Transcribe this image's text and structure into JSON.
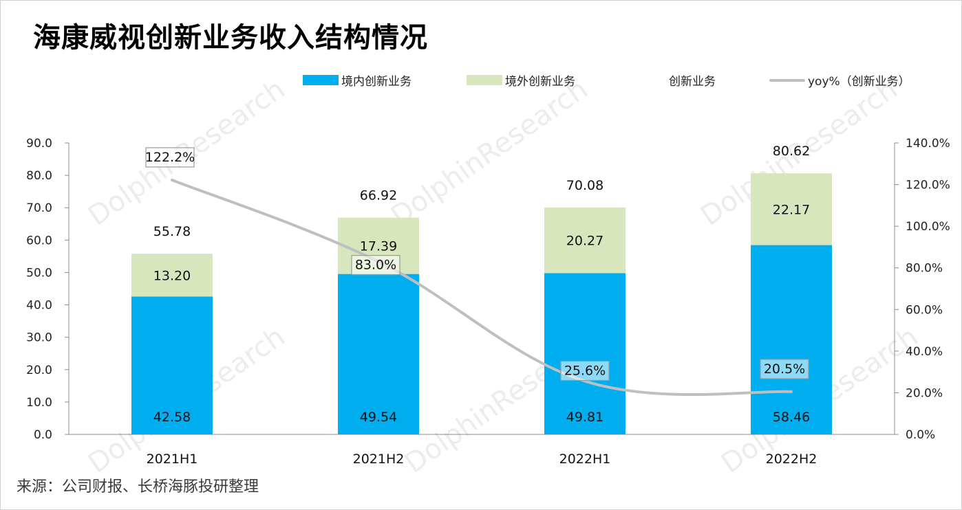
{
  "title": "海康威视创新业务收入结构情况",
  "source": "来源：公司财报、长桥海豚投研整理",
  "watermark": "DolphinResearch",
  "legend": [
    {
      "label": "境内创新业务",
      "color": "#00AEEF",
      "kind": "bar"
    },
    {
      "label": "境外创新业务",
      "color": "#D8E6BE",
      "kind": "bar"
    },
    {
      "label": "创新业务",
      "color": "#ffffff",
      "kind": "none"
    },
    {
      "label": "yoy%（创新业务）",
      "color": "#BFBFBF",
      "kind": "line"
    }
  ],
  "chart_data": {
    "type": "bar",
    "stacked": true,
    "categories": [
      "2021H1",
      "2021H2",
      "2022H1",
      "2022H2"
    ],
    "series": [
      {
        "name": "境内创新业务",
        "values": [
          42.58,
          49.54,
          49.81,
          58.46
        ],
        "labels": [
          "42.58",
          "49.54",
          "49.81",
          "58.46"
        ],
        "color": "#00AEEF"
      },
      {
        "name": "境外创新业务",
        "values": [
          13.2,
          17.39,
          20.27,
          22.17
        ],
        "labels": [
          "13.20",
          "17.39",
          "20.27",
          "22.17"
        ],
        "color": "#D8E6BE"
      }
    ],
    "totals": {
      "name": "创新业务",
      "values": [
        55.78,
        66.92,
        70.08,
        80.62
      ],
      "labels": [
        "55.78",
        "66.92",
        "70.08",
        "80.62"
      ]
    },
    "line": {
      "name": "yoy%（创新业务）",
      "values": [
        122.2,
        83.0,
        25.6,
        20.5
      ],
      "labels": [
        "122.2%",
        "83.0%",
        "25.6%",
        "20.5%"
      ],
      "color": "#BFBFBF",
      "axis": "right"
    },
    "ylim": [
      0,
      90
    ],
    "y_ticks": [
      "0.0",
      "10.0",
      "20.0",
      "30.0",
      "40.0",
      "50.0",
      "60.0",
      "70.0",
      "80.0",
      "90.0"
    ],
    "y2lim": [
      0,
      140
    ],
    "y2_ticks": [
      "0.0%",
      "20.0%",
      "40.0%",
      "60.0%",
      "80.0%",
      "100.0%",
      "120.0%",
      "140.0%"
    ],
    "grid": false,
    "legend_position": "top"
  }
}
